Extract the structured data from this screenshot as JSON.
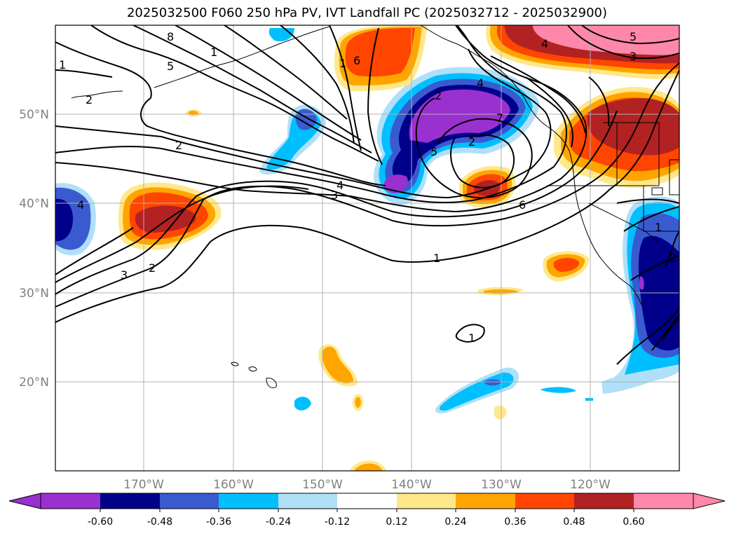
{
  "title": "2025032500 F060 250 hPa PV, IVT Landfall PC (2025032712 - 2025032900)",
  "latitude_labels": [
    "50°N",
    "40°N",
    "30°N",
    "20°N"
  ],
  "longitude_labels": [
    "170°W",
    "160°W",
    "150°W",
    "140°W",
    "130°W",
    "120°W"
  ],
  "colorbar": {
    "ticks": [
      "-0.60",
      "-0.48",
      "-0.36",
      "-0.24",
      "-0.12",
      "0.12",
      "0.24",
      "0.36",
      "0.48",
      "0.60"
    ],
    "colors": [
      "#9b30d0",
      "#00008b",
      "#3a5bd0",
      "#00bfff",
      "#b0e0f8",
      "#ffffff",
      "#ffe88a",
      "#ffa500",
      "#ff4500",
      "#b22222",
      "#ff88aa"
    ]
  },
  "contour_labels": [
    "8",
    "1",
    "5",
    "1",
    "2",
    "2",
    "1",
    "6",
    "2",
    "4",
    "7",
    "5",
    "2",
    "4",
    "3",
    "4",
    "6",
    "3",
    "2",
    "1",
    "1",
    "5",
    "4",
    "3",
    "1",
    "2"
  ]
}
